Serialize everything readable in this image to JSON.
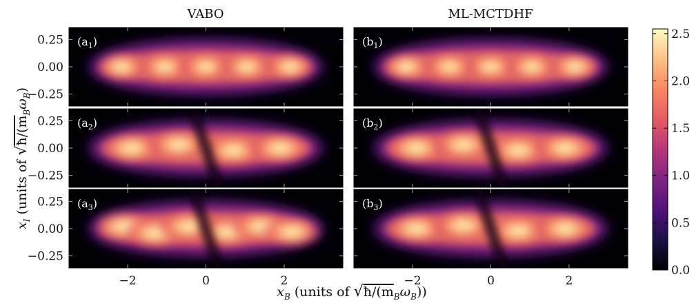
{
  "chart_data": [
    {
      "type": "heatmap",
      "title": "VABO",
      "panels": [
        {
          "label": "a",
          "subscript": "1",
          "wave": "ground"
        },
        {
          "label": "a",
          "subscript": "2",
          "wave": "dark-soliton"
        },
        {
          "label": "a",
          "subscript": "3",
          "wave": "dark-soliton-fragmented"
        }
      ]
    },
    {
      "type": "heatmap",
      "title": "ML-MCTDHF",
      "panels": [
        {
          "label": "b",
          "subscript": "1",
          "wave": "ground"
        },
        {
          "label": "b",
          "subscript": "2",
          "wave": "dark-soliton"
        },
        {
          "label": "b",
          "subscript": "3",
          "wave": "dark-soliton-smooth"
        }
      ]
    }
  ],
  "axes": {
    "x": {
      "var": "x",
      "sub": "B",
      "label_prefix": "(units of ",
      "label_suffix": ")",
      "sqrt": "ħ/(m",
      "sqrt_sub": "B",
      "omega": "ω",
      "omega_sub": "B",
      "close": ")",
      "xlim": [
        -3.5,
        3.5
      ],
      "ticks": [
        -2,
        0,
        2
      ],
      "tick_labels": [
        "−2",
        "0",
        "2"
      ]
    },
    "y": {
      "var": "x",
      "sub": "I",
      "label_prefix": "(units of ",
      "sqrt": "ħ/(m",
      "sqrt_sub": "B",
      "omega": "ω",
      "omega_sub": "B",
      "close": ")",
      "ylim": [
        -0.36,
        0.36
      ],
      "ticks": [
        0.25,
        0.0,
        -0.25
      ],
      "tick_labels": [
        "0.25",
        "0.00",
        "−0.25"
      ]
    }
  },
  "colorbar": {
    "range": [
      0.0,
      2.55
    ],
    "ticks": [
      0.0,
      0.5,
      1.0,
      1.5,
      2.0,
      2.5
    ],
    "tick_labels": [
      "0.0",
      "0.5",
      "1.0",
      "1.5",
      "2.0",
      "2.5"
    ],
    "colormap": "magma"
  }
}
